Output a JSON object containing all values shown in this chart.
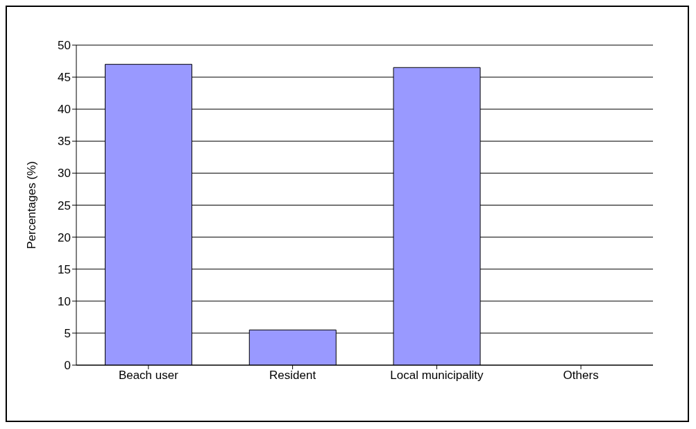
{
  "chart_data": {
    "type": "bar",
    "ylabel": "Percentages (%)",
    "categories": [
      "Beach user",
      "Resident",
      "Local municipality",
      "Others"
    ],
    "values": [
      47,
      5.5,
      46.5,
      0
    ],
    "color": "#9999ff",
    "ylim": [
      0,
      50
    ],
    "yticks": [
      0,
      5,
      10,
      15,
      20,
      25,
      30,
      35,
      40,
      45,
      50
    ],
    "grid": "y"
  }
}
